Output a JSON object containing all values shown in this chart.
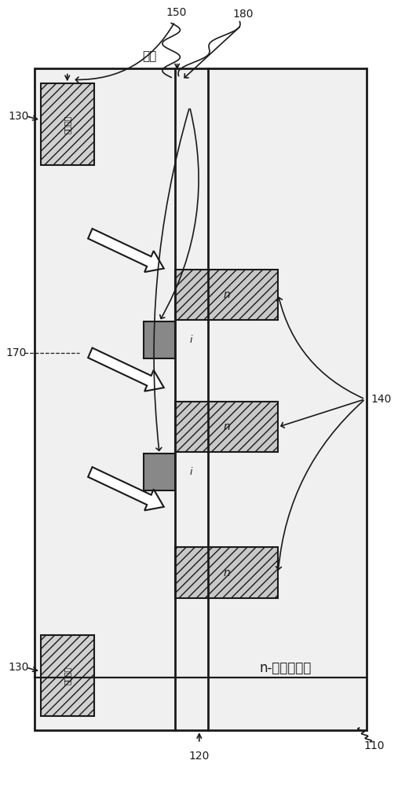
{
  "fig_width": 5.07,
  "fig_height": 10.0,
  "bg_color": "#ffffff",
  "lc": "#1a1a1a",
  "body_fc": "#f0f0f0",
  "n_rect_fc": "#c8c8c8",
  "i_rect_fc": "#888888",
  "block_metal_fc": "#d0d0d0",
  "label_110": "110",
  "label_120": "120",
  "label_130": "130",
  "label_140": "140",
  "label_150": "150",
  "label_170": "170",
  "label_180": "180",
  "text_n_layer": "n-层（阴极）",
  "text_blocking_metal": "阻挡金属",
  "text_dielectric": "介电"
}
